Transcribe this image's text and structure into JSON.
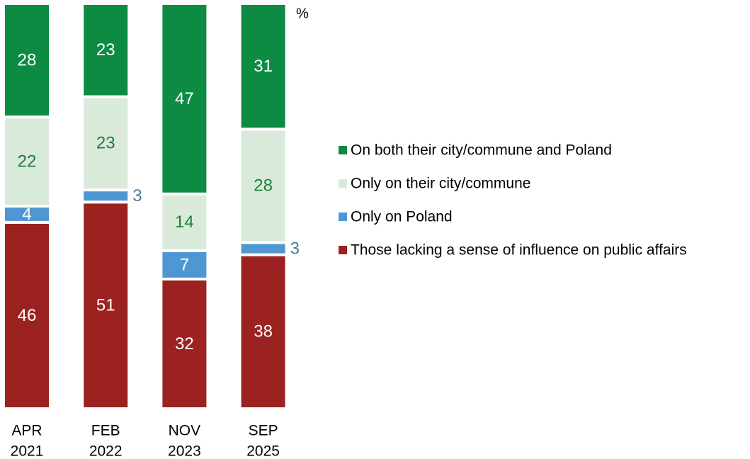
{
  "chart_data": {
    "type": "stacked-bar",
    "unit": "%",
    "categories": [
      [
        "APR",
        "2021"
      ],
      [
        "FEB",
        "2022"
      ],
      [
        "NOV",
        "2023"
      ],
      [
        "SEP",
        "2025"
      ]
    ],
    "ylim": [
      0,
      100
    ],
    "series": [
      {
        "name": "On both their city/commune and Poland",
        "color": "#0d8b43",
        "label_color": "#ffffff",
        "values": [
          28,
          23,
          47,
          31
        ]
      },
      {
        "name": "Only on their city/commune",
        "color": "#d9eadb",
        "label_color": "#1a7f3c",
        "values": [
          22,
          23,
          14,
          28
        ]
      },
      {
        "name": "Only on Poland",
        "color": "#4f97d3",
        "label_color": "#ffffff",
        "values": [
          4,
          3,
          7,
          3
        ]
      },
      {
        "name": "Those lacking a sense of influence on public affairs",
        "color": "#9b2220",
        "label_color": "#ffffff",
        "values": [
          46,
          51,
          32,
          38
        ]
      }
    ]
  }
}
